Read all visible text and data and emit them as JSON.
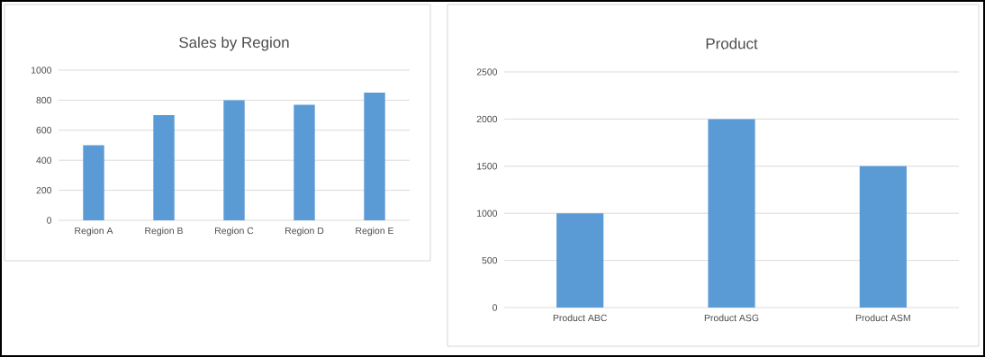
{
  "chart_data": [
    {
      "type": "bar",
      "title": "Sales by Region",
      "categories": [
        "Region A",
        "Region B",
        "Region C",
        "Region D",
        "Region E"
      ],
      "values": [
        500,
        700,
        800,
        770,
        850
      ],
      "color": "#5b9bd5",
      "ylim": [
        0,
        1000
      ],
      "yticks": [
        0,
        200,
        400,
        600,
        800,
        1000
      ],
      "grid": "y"
    },
    {
      "type": "bar",
      "title": "Product",
      "categories": [
        "Product ABC",
        "Product ASG",
        "Product ASM"
      ],
      "values": [
        1000,
        2000,
        1500
      ],
      "color": "#5b9bd5",
      "ylim": [
        0,
        2500
      ],
      "yticks": [
        0,
        500,
        1000,
        1500,
        2000,
        2500
      ],
      "grid": "y"
    }
  ]
}
